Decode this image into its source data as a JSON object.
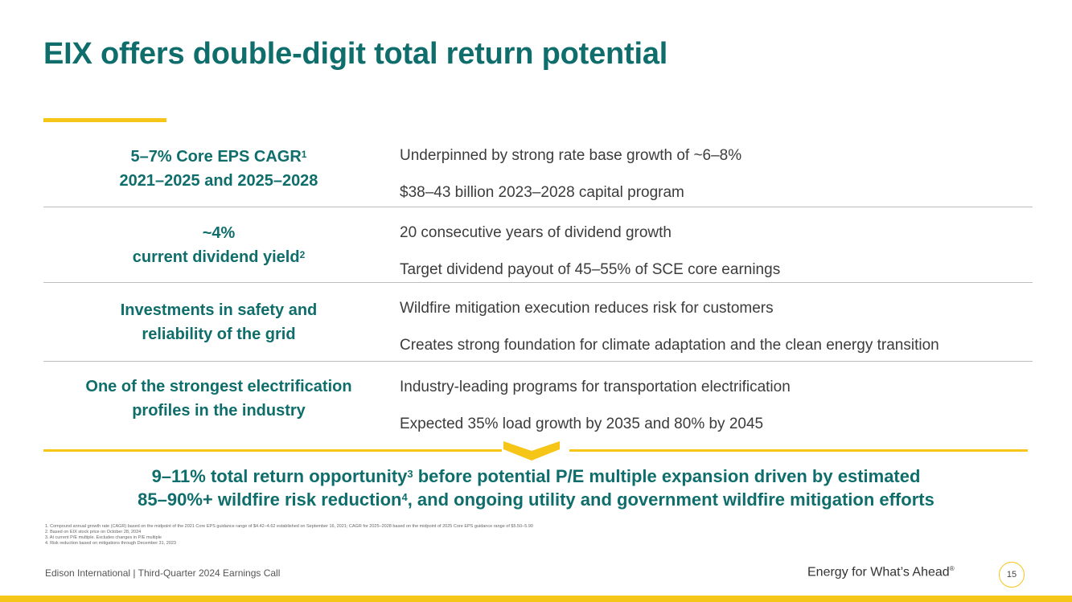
{
  "slide": {
    "title": "EIX offers double-digit total return potential",
    "rows": [
      {
        "heading_line1": "5–7% Core EPS CAGR",
        "heading_sup1": "1",
        "heading_line2": "2021–2025 and 2025–2028",
        "heading_sup2": "",
        "points": [
          "Underpinned by strong rate base growth of ~6–8%",
          "$38–43 billion 2023–2028 capital program"
        ]
      },
      {
        "heading_line1": "~4%",
        "heading_sup1": "",
        "heading_line2": "current dividend yield",
        "heading_sup2": "2",
        "points": [
          "20 consecutive years of dividend growth",
          "Target dividend payout of 45–55% of SCE core earnings"
        ]
      },
      {
        "heading_line1": "Investments in safety and",
        "heading_sup1": "",
        "heading_line2": "reliability of the grid",
        "heading_sup2": "",
        "points": [
          "Wildfire mitigation execution reduces risk for customers",
          "Creates strong foundation for climate adaptation and the clean energy transition"
        ]
      },
      {
        "heading_line1": "One of the strongest electrification",
        "heading_sup1": "",
        "heading_line2": "profiles in the industry",
        "heading_sup2": "",
        "points": [
          "Industry-leading programs for transportation electrification",
          "Expected 35% load growth by 2035 and 80% by 2045"
        ]
      }
    ],
    "summary": {
      "part1": "9–11% total return opportunity",
      "sup1": "3",
      "part2": " before potential P/E multiple expansion driven by estimated",
      "part3": "85–90%+ wildfire risk reduction",
      "sup2": "4",
      "part4": ", and ongoing utility and government wildfire mitigation efforts"
    },
    "footnotes": [
      "1.  Compound annual growth rate (CAGR) based on the midpoint of the 2021 Core EPS guidance range of $4.42–4.62 established on September 16, 2021; CAGR for 2025–2028 based on the midpoint of 2025 Core EPS guidance range of $5.50–5.90",
      "2.  Based on EIX stock price on October 28, 2024",
      "3.  At current P/E multiple. Excludes changes in P/E multiple",
      "4.  Risk reduction based on mitigations through December 31, 2023"
    ],
    "footer": {
      "left": "Edison International |  Third-Quarter 2024 Earnings Call",
      "tagline": "Energy for What’s Ahead",
      "tagline_mark": "®",
      "page_number": "15"
    },
    "colors": {
      "brand_teal": "#0f6e6b",
      "accent_yellow": "#f5c518"
    }
  }
}
